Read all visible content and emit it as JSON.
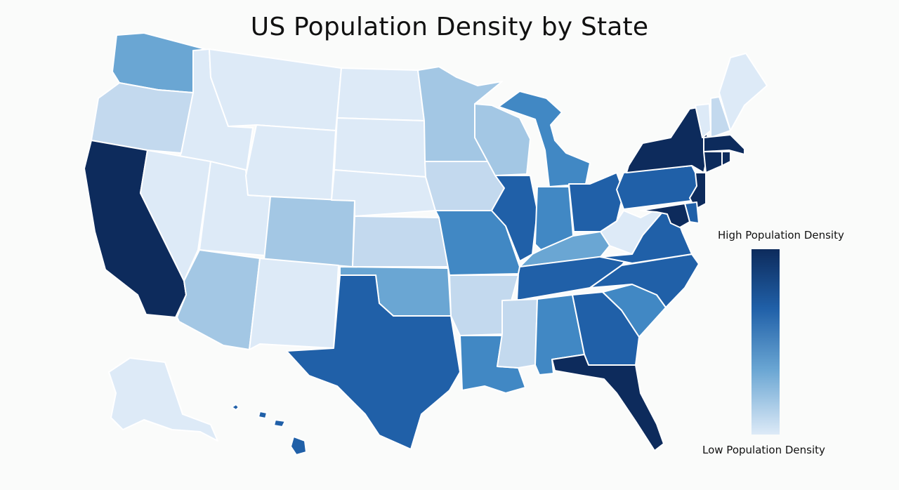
{
  "title": "US Population Density by State",
  "legend": {
    "high_label": "High Population Density",
    "low_label": "Low Population Density",
    "high_color": "#0d2b5c",
    "low_color": "#ddeaf7"
  },
  "color_scale": {
    "1": "#ddeaf7",
    "2": "#c3d9ee",
    "3": "#a3c7e4",
    "4": "#6aa6d3",
    "5": "#4188c4",
    "6": "#2060a8",
    "7": "#0d2b5c"
  },
  "states": [
    {
      "id": "WA",
      "level": 4
    },
    {
      "id": "OR",
      "level": 2
    },
    {
      "id": "CA",
      "level": 7
    },
    {
      "id": "ID",
      "level": 1
    },
    {
      "id": "NV",
      "level": 1
    },
    {
      "id": "UT",
      "level": 1
    },
    {
      "id": "AZ",
      "level": 3
    },
    {
      "id": "MT",
      "level": 1
    },
    {
      "id": "WY",
      "level": 1
    },
    {
      "id": "CO",
      "level": 3
    },
    {
      "id": "NM",
      "level": 1
    },
    {
      "id": "ND",
      "level": 1
    },
    {
      "id": "SD",
      "level": 1
    },
    {
      "id": "NE",
      "level": 1
    },
    {
      "id": "KS",
      "level": 2
    },
    {
      "id": "OK",
      "level": 4
    },
    {
      "id": "TX",
      "level": 6
    },
    {
      "id": "MN",
      "level": 3
    },
    {
      "id": "IA",
      "level": 2
    },
    {
      "id": "MO",
      "level": 5
    },
    {
      "id": "AR",
      "level": 2
    },
    {
      "id": "LA",
      "level": 5
    },
    {
      "id": "WI",
      "level": 3
    },
    {
      "id": "IL",
      "level": 6
    },
    {
      "id": "MI",
      "level": 5
    },
    {
      "id": "IN",
      "level": 5
    },
    {
      "id": "OH",
      "level": 6
    },
    {
      "id": "KY",
      "level": 4
    },
    {
      "id": "TN",
      "level": 6
    },
    {
      "id": "MS",
      "level": 2
    },
    {
      "id": "AL",
      "level": 5
    },
    {
      "id": "GA",
      "level": 6
    },
    {
      "id": "FL",
      "level": 7
    },
    {
      "id": "SC",
      "level": 5
    },
    {
      "id": "NC",
      "level": 6
    },
    {
      "id": "VA",
      "level": 6
    },
    {
      "id": "WV",
      "level": 1
    },
    {
      "id": "PA",
      "level": 6
    },
    {
      "id": "NY",
      "level": 7
    },
    {
      "id": "VT",
      "level": 1
    },
    {
      "id": "NH",
      "level": 2
    },
    {
      "id": "ME",
      "level": 1
    },
    {
      "id": "MA",
      "level": 7
    },
    {
      "id": "CT",
      "level": 7
    },
    {
      "id": "RI",
      "level": 7
    },
    {
      "id": "NJ",
      "level": 7
    },
    {
      "id": "DE",
      "level": 6
    },
    {
      "id": "MD",
      "level": 7
    },
    {
      "id": "AK",
      "level": 1
    },
    {
      "id": "HI",
      "level": 6
    }
  ]
}
